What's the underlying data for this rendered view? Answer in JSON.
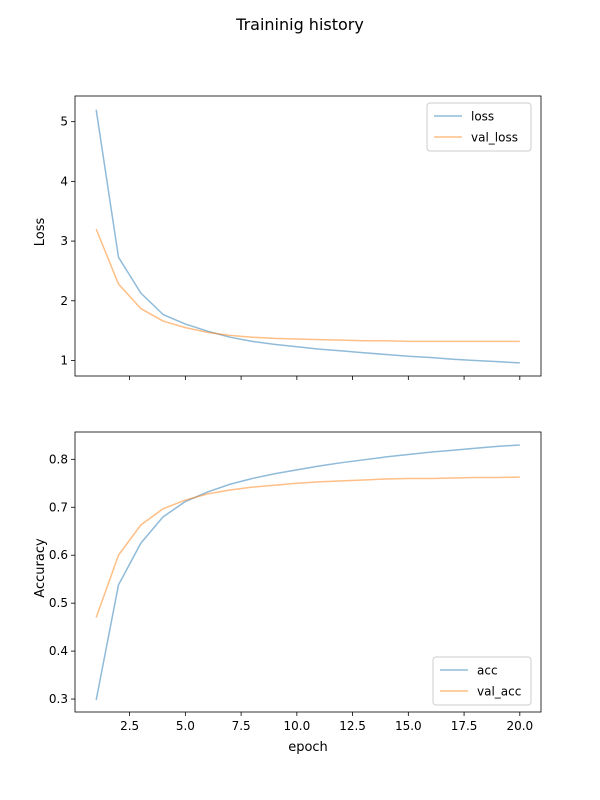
{
  "figure": {
    "suptitle": "Traininig history"
  },
  "chart_data": [
    {
      "type": "line",
      "ylabel": "Loss",
      "xlabel": "",
      "xlim": [
        0.05,
        20.95
      ],
      "ylim": [
        0.74,
        5.43
      ],
      "x_ticks": [
        2.5,
        5.0,
        7.5,
        10.0,
        12.5,
        15.0,
        17.5,
        20.0
      ],
      "x_tick_labels_visible": false,
      "y_ticks": [
        1,
        2,
        3,
        4,
        5
      ],
      "y_tick_labels": [
        "1",
        "2",
        "3",
        "4",
        "5"
      ],
      "legend_position": "upper right",
      "grid": false,
      "x": [
        1,
        2,
        3,
        4,
        5,
        6,
        7,
        8,
        9,
        10,
        11,
        12,
        13,
        14,
        15,
        16,
        17,
        18,
        19,
        20
      ],
      "series": [
        {
          "name": "loss",
          "color": "#1f77b4",
          "values": [
            5.2,
            2.73,
            2.13,
            1.77,
            1.61,
            1.49,
            1.39,
            1.32,
            1.27,
            1.23,
            1.19,
            1.16,
            1.13,
            1.1,
            1.07,
            1.05,
            1.02,
            1.0,
            0.98,
            0.96
          ]
        },
        {
          "name": "val_loss",
          "color": "#ff7f0e",
          "values": [
            3.2,
            2.28,
            1.87,
            1.66,
            1.55,
            1.47,
            1.42,
            1.39,
            1.37,
            1.36,
            1.35,
            1.34,
            1.33,
            1.33,
            1.32,
            1.32,
            1.32,
            1.32,
            1.32,
            1.32
          ]
        }
      ]
    },
    {
      "type": "line",
      "ylabel": "Accuracy",
      "xlabel": "epoch",
      "xlim": [
        0.05,
        20.95
      ],
      "ylim": [
        0.273,
        0.857
      ],
      "x_ticks": [
        2.5,
        5.0,
        7.5,
        10.0,
        12.5,
        15.0,
        17.5,
        20.0
      ],
      "x_tick_labels": [
        "2.5",
        "5.0",
        "7.5",
        "10.0",
        "12.5",
        "15.0",
        "17.5",
        "20.0"
      ],
      "y_ticks": [
        0.3,
        0.4,
        0.5,
        0.6,
        0.7,
        0.8
      ],
      "y_tick_labels": [
        "0.3",
        "0.4",
        "0.5",
        "0.6",
        "0.7",
        "0.8"
      ],
      "legend_position": "lower right",
      "grid": false,
      "x": [
        1,
        2,
        3,
        4,
        5,
        6,
        7,
        8,
        9,
        10,
        11,
        12,
        13,
        14,
        15,
        16,
        17,
        18,
        19,
        20
      ],
      "series": [
        {
          "name": "acc",
          "color": "#1f77b4",
          "values": [
            0.298,
            0.538,
            0.625,
            0.68,
            0.712,
            0.732,
            0.748,
            0.76,
            0.77,
            0.778,
            0.786,
            0.793,
            0.799,
            0.805,
            0.81,
            0.815,
            0.819,
            0.823,
            0.827,
            0.83
          ]
        },
        {
          "name": "val_acc",
          "color": "#ff7f0e",
          "values": [
            0.47,
            0.6,
            0.663,
            0.697,
            0.715,
            0.728,
            0.736,
            0.742,
            0.746,
            0.75,
            0.753,
            0.755,
            0.757,
            0.759,
            0.76,
            0.76,
            0.761,
            0.762,
            0.762,
            0.763
          ]
        }
      ]
    }
  ]
}
